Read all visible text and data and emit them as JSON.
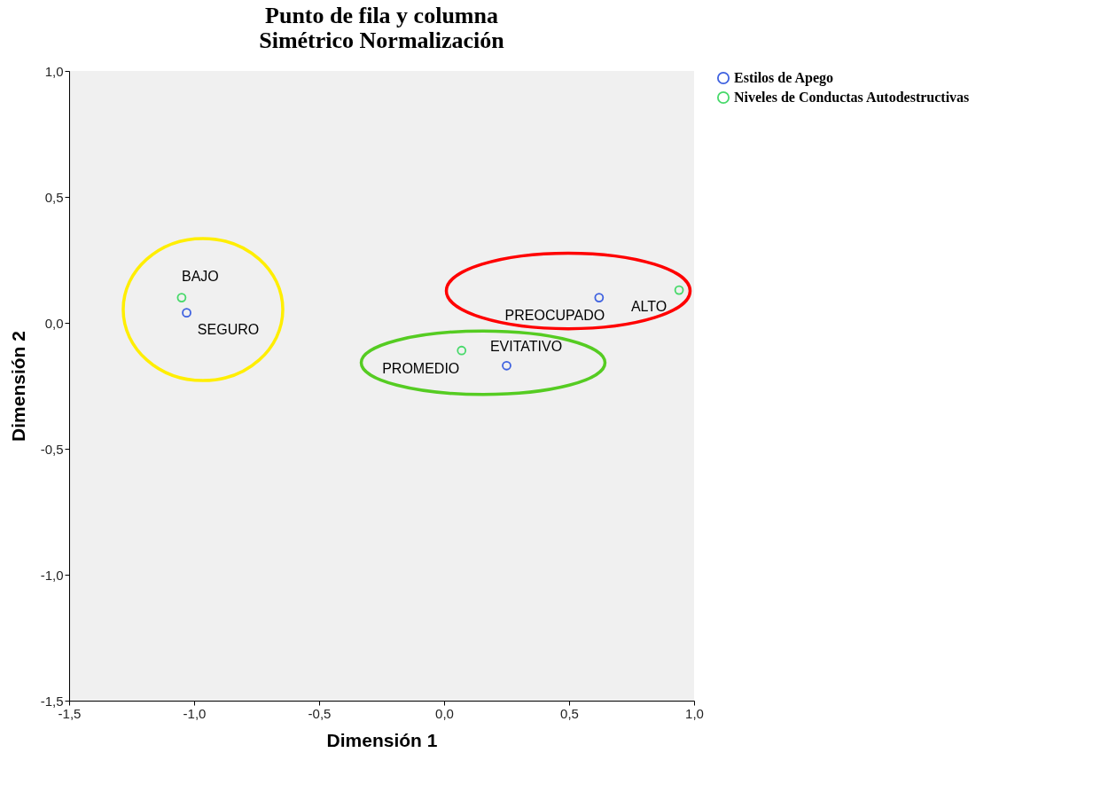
{
  "chart_data": {
    "type": "scatter",
    "title": "Punto de fila y columna\nSimétrico  Normalización",
    "xlabel": "Dimensión 1",
    "ylabel": "Dimensión 2",
    "series": [
      {
        "name": "Estilos de Apego",
        "color": "#3f62e0",
        "x": [
          -1.03,
          0.25,
          0.62
        ],
        "values": [
          0.04,
          -0.17,
          0.1
        ]
      },
      {
        "name": "Niveles de Conductas Autodestructivas",
        "color": "#47d96a",
        "x": [
          -1.05,
          0.07,
          0.94
        ],
        "values": [
          0.1,
          -0.11,
          0.13
        ]
      }
    ],
    "annotations": [
      {
        "text": "BAJO",
        "x": -1.05,
        "y": 0.1
      },
      {
        "text": "SEGURO",
        "x": -1.03,
        "y": 0.04
      },
      {
        "text": "PROMEDIO",
        "x": 0.07,
        "y": -0.11
      },
      {
        "text": "EVITATIVO",
        "x": 0.25,
        "y": -0.17
      },
      {
        "text": "PREOCUPADO",
        "x": 0.62,
        "y": 0.1
      },
      {
        "text": "ALTO",
        "x": 0.94,
        "y": 0.13
      }
    ],
    "xlim": [
      -1.5,
      1.0
    ],
    "xticks": [
      {
        "value": -1.5,
        "label": "-1,5"
      },
      {
        "value": -1.0,
        "label": "-1,0"
      },
      {
        "value": -0.5,
        "label": "-0,5"
      },
      {
        "value": 0.0,
        "label": "0,0"
      },
      {
        "value": 0.5,
        "label": "0,5"
      },
      {
        "value": 1.0,
        "label": "1,0"
      }
    ],
    "ylim": [
      -1.5,
      1.0
    ],
    "yticks": [
      {
        "value": -1.5,
        "label": "-1,5"
      },
      {
        "value": -1.0,
        "label": "-1,0"
      },
      {
        "value": -0.5,
        "label": "-0,5"
      },
      {
        "value": 0.0,
        "label": "0,0"
      },
      {
        "value": 0.5,
        "label": "0,5"
      },
      {
        "value": 1.0,
        "label": "1,0"
      }
    ],
    "grid": false,
    "legend": "top right",
    "marker": "circle"
  }
}
